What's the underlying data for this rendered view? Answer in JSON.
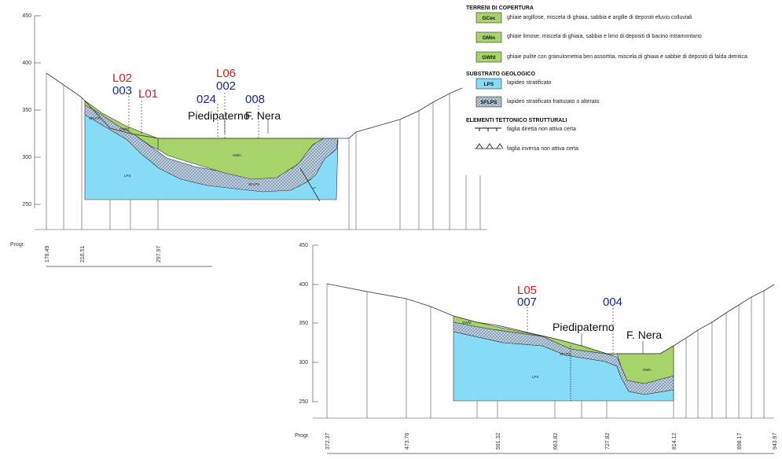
{
  "colors": {
    "gmin": "#a6d46b",
    "lps": "#86dcf7",
    "sflps": "#c2d5e3",
    "hatch": "#5b7791",
    "outline": "#333333",
    "red": "#d42020",
    "blue": "#1a2a9a"
  },
  "legend": {
    "cover_title": "TERRENI DI COPERTURA",
    "cover_items": [
      {
        "code": "GCec",
        "text": "ghiaie argillose, miscela di ghiaia, sabbia e argille di depositi eluvio colluviali"
      },
      {
        "code": "GMin",
        "text": "ghiaie limose, miscela di ghiaia, sabbia e limo di depositi di bacino intramontano"
      },
      {
        "code": "GWfd",
        "text": "ghiaie pulite con granulometria ben assortita, miscela di ghiaia e sabbie di depositi di falda detritica"
      }
    ],
    "substrate_title": "SUBSTRATO  GEOLOGICO",
    "substrate_items": [
      {
        "code": "LPS",
        "text": "lapideo stratificato"
      },
      {
        "code": "SFLPS",
        "text": "lapideo stratificato fratturato o alterato"
      }
    ],
    "tectonic_title": "ELEMENTI TETTONICO STRUTTURALI",
    "tectonic_items": [
      {
        "text": "faglia diretta non attiva certa"
      },
      {
        "text": "faglia inversa non attiva certa"
      }
    ]
  },
  "section1": {
    "elev_ticks": [
      "450",
      "400",
      "350",
      "300",
      "250"
    ],
    "prog_title": "Progr.",
    "prog_labels": [
      "178.49",
      "216.51",
      "297.97"
    ],
    "boreholes": [
      {
        "red": "L02",
        "blue": "003"
      },
      {
        "red": "L01"
      },
      {
        "red": "L06",
        "blue": "002"
      },
      {
        "blue": "024"
      },
      {
        "blue": "008"
      }
    ],
    "places": [
      "Piedipaterno",
      "F. Nera"
    ],
    "units": [
      "SFLPS",
      "GWfd",
      "LPS",
      "GMin",
      "SFLPS"
    ]
  },
  "section2": {
    "elev_ticks": [
      "450",
      "400",
      "350",
      "300",
      "250"
    ],
    "prog_title": "Progr.",
    "prog_labels": [
      "372.37",
      "473.76",
      "591.32",
      "663.82",
      "727.82",
      "814.12",
      "898.17",
      "943.97"
    ],
    "boreholes": [
      {
        "red": "L05",
        "blue": "007"
      },
      {
        "blue": "004"
      }
    ],
    "places": [
      "Piedipaterno",
      "F. Nera"
    ],
    "units": [
      "GWfd",
      "SFLPS",
      "LPS",
      "GMin"
    ]
  }
}
